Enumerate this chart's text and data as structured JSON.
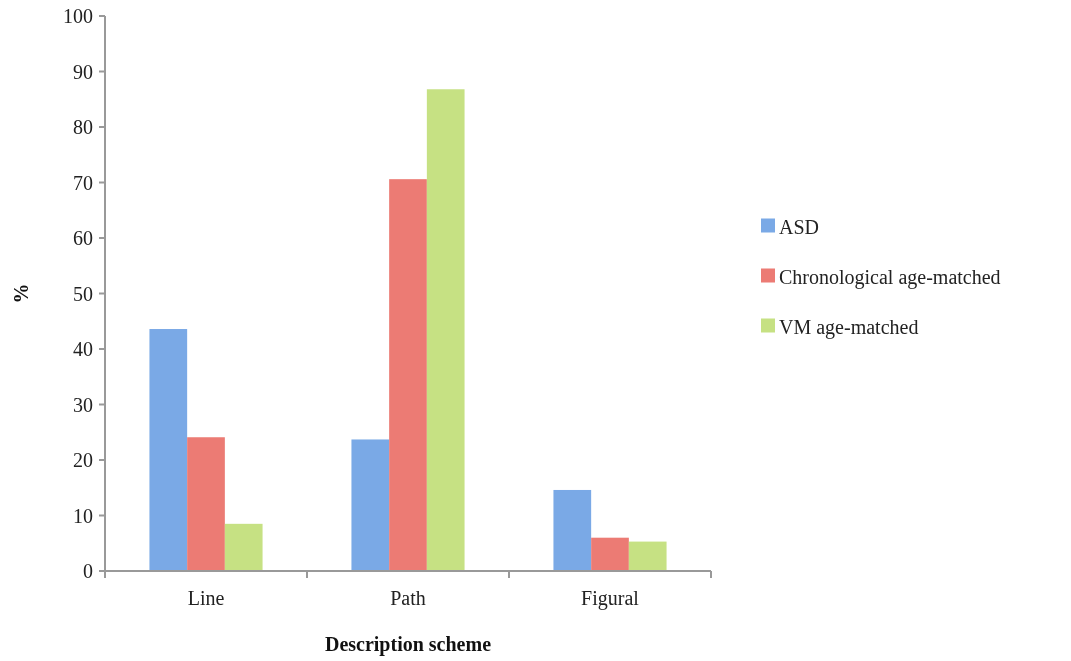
{
  "chart_data": {
    "type": "bar",
    "xlabel": "Description scheme",
    "ylabel": "%",
    "categories": [
      "Line",
      "Path",
      "Figural"
    ],
    "series": [
      {
        "name": "ASD",
        "color": "#7aa9e6",
        "values": [
          43.6,
          23.7,
          14.6
        ]
      },
      {
        "name": "Chronological age-matched",
        "color": "#ec7b74",
        "values": [
          24.1,
          70.6,
          6.0
        ]
      },
      {
        "name": "VM age-matched",
        "color": "#c6e183",
        "values": [
          8.5,
          86.8,
          5.3
        ]
      }
    ],
    "ylim": [
      0,
      100
    ],
    "yticks": [
      0,
      10,
      20,
      30,
      40,
      50,
      60,
      70,
      80,
      90,
      100
    ],
    "legend": "right",
    "grid": false
  }
}
